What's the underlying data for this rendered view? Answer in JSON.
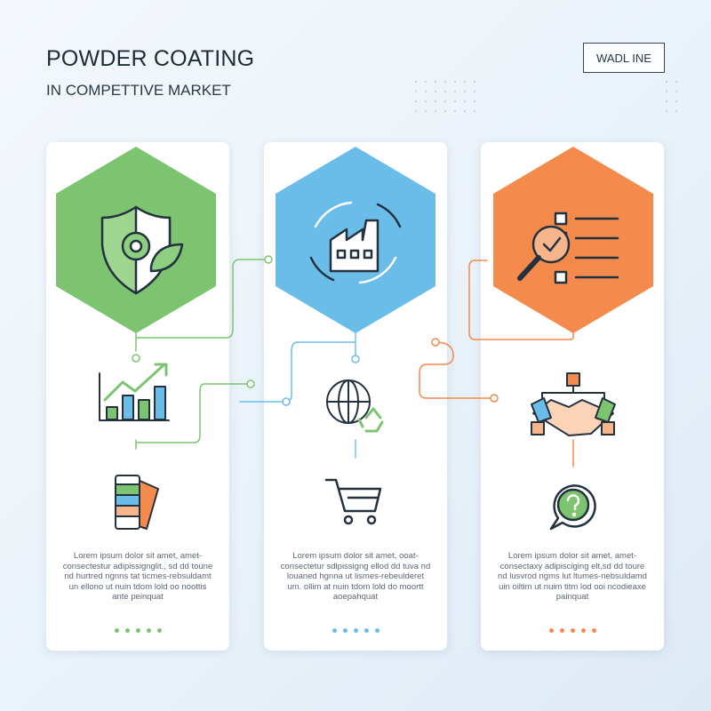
{
  "header": {
    "title": "POWDER COATING",
    "subtitle": "IN COMPETTIVE MARKET",
    "badge": "WADL INE"
  },
  "colors": {
    "green": "#7cc46f",
    "blue": "#6bbde9",
    "orange": "#f48a4c"
  },
  "cards": [
    {
      "color": "green",
      "icons": [
        "shield-gear-leaf-icon",
        "growth-chart-icon",
        "color-swatch-icon"
      ],
      "text": "Lorem ipsum dolor sit amet, amet-consectestur adipissignglit., sd dd toune nd hurtred ngnns tat ticmes-rebsuldamt un ellono ut nuin tdom lold oo noottis ante peinquat"
    },
    {
      "color": "blue",
      "icons": [
        "factory-cycle-icon",
        "globe-recycle-icon",
        "shopping-cart-icon"
      ],
      "text": "Lorem ipsum dolor sit amet, ooat-consectetur sdlpissigng ellod dd tuva nd louaned hgnna ut lismes-rebeulderet um. ollim at nuin tdom lold do moortt aoepahquat"
    },
    {
      "color": "orange",
      "icons": [
        "checklist-magnifier-icon",
        "handshake-icon",
        "question-bubble-icon"
      ],
      "text": "Lorem ipsum dolor sit amet, amet-consectaxy adipisciging elt,sd dd toure nd lusvrod ngms lut ltumes-nebsuldamd uin oiltim ut nuim titm lod ooi ncodieaxe painquat"
    }
  ]
}
